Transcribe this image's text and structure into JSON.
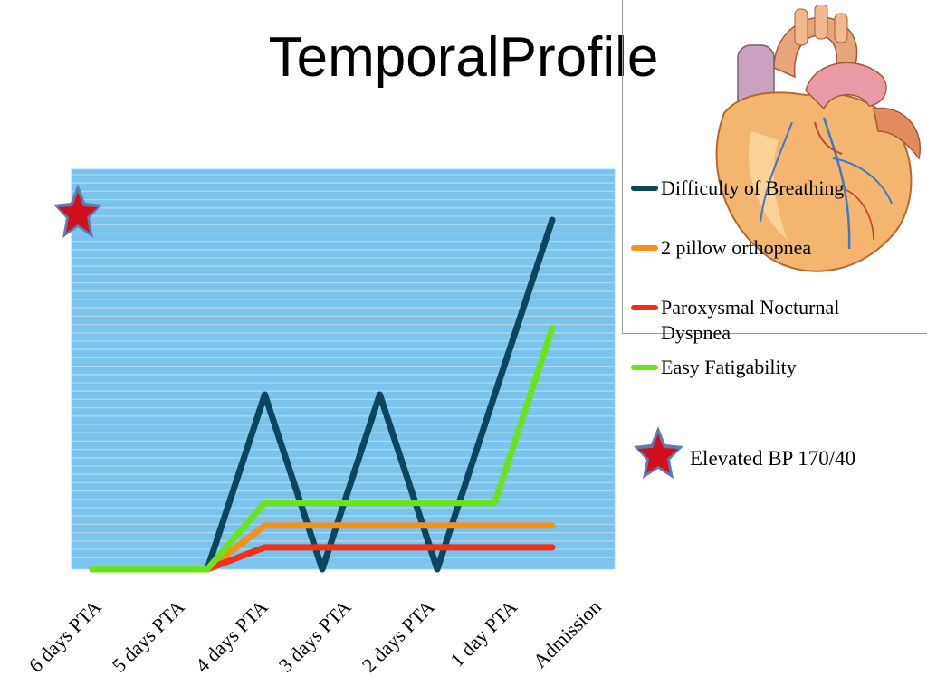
{
  "slide": {
    "title": "TemporalProfile",
    "heart_image": "heart-illustration",
    "bp_note": "Elevated BP 170/40",
    "star_icon": "red-star-icon"
  },
  "chart_data": {
    "type": "line",
    "title": "",
    "xlabel": "",
    "ylabel": "",
    "categories": [
      "6 days PTA",
      "5 days PTA",
      "4 days PTA",
      "3 days PTA",
      "2 days PTA",
      "1 day PTA",
      "Admission"
    ],
    "x": [
      "6 days PTA",
      "",
      "5 days PTA",
      "",
      "4 days PTA",
      "",
      "",
      "",
      "3 days PTA",
      "",
      "",
      "",
      "2 days PTA",
      "",
      "1 day PTA",
      "",
      "Admission"
    ],
    "plot_background": "#79C3EC",
    "grid": "horizontal stripes",
    "legend_position": "right",
    "series": [
      {
        "name": "Difficulty of Breathing",
        "color": "#0B4560",
        "values": [
          0,
          0,
          0,
          0,
          0,
          0.5,
          1,
          0.5,
          0,
          0.5,
          1,
          0.5,
          0,
          0.5,
          1,
          1.5,
          2
        ]
      },
      {
        "name": "2 pillow orthopnea",
        "color": "#F59118",
        "values": [
          0,
          0,
          0,
          0,
          0,
          0.125,
          0.25,
          0.25,
          0.25,
          0.25,
          0.25,
          0.25,
          0.25,
          0.25,
          0.25,
          0.25,
          0.25
        ]
      },
      {
        "name": "Paroxysmal Nocturnal Dyspnea",
        "color": "#F2301A",
        "values": [
          0,
          0,
          0,
          0,
          0,
          0.0625,
          0.125,
          0.125,
          0.125,
          0.125,
          0.125,
          0.125,
          0.125,
          0.125,
          0.125,
          0.125,
          0.125
        ]
      },
      {
        "name": "Easy Fatigability",
        "color": "#6AE21E",
        "values": [
          0,
          0,
          0,
          0,
          0,
          0.19,
          0.38,
          0.38,
          0.38,
          0.38,
          0.38,
          0.38,
          0.38,
          0.38,
          0.38,
          0.88,
          1.38
        ]
      }
    ],
    "ylim": [
      0,
      2
    ]
  }
}
